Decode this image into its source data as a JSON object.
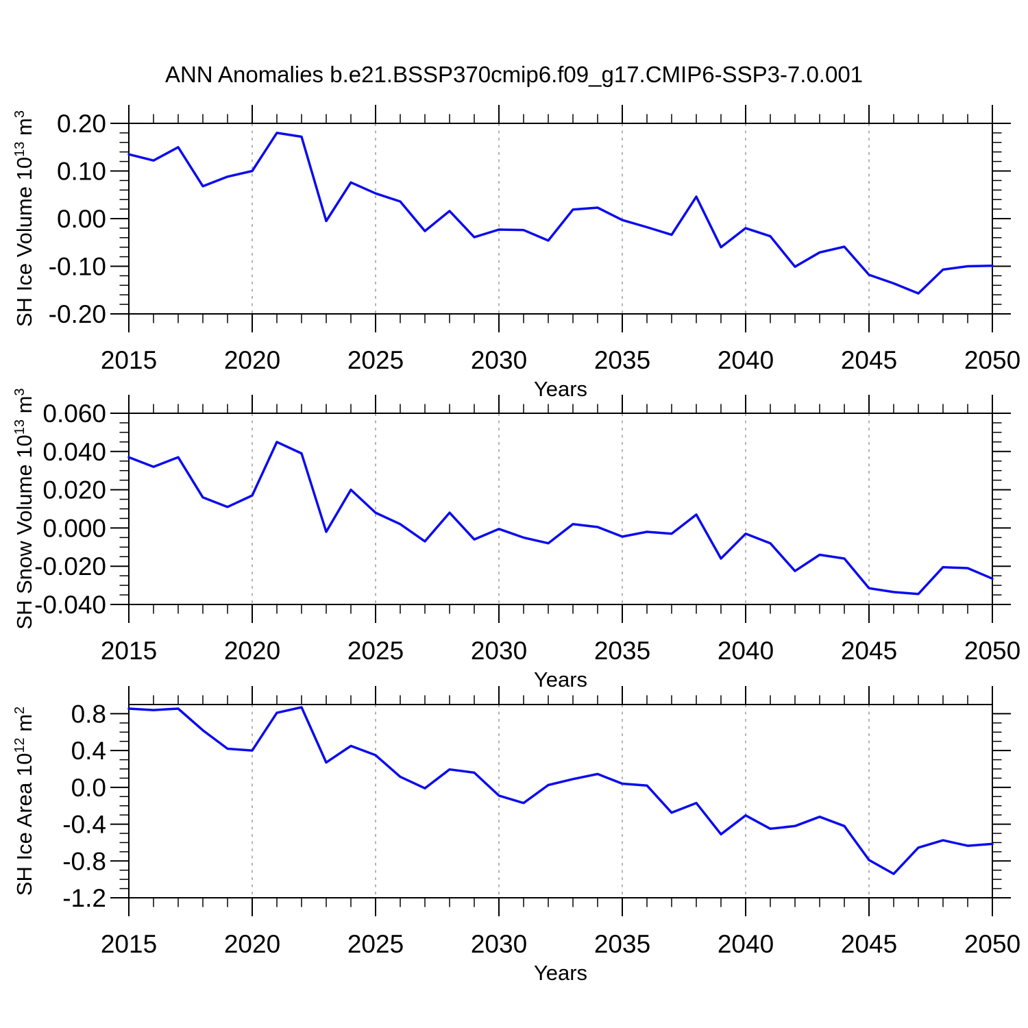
{
  "chart_title": "ANN Anomalies b.e21.BSSP370cmip6.f09_g17.CMIP6-SSP3-7.0.001",
  "colors": {
    "line": "#0b0bf0",
    "grid": "#b4b4b4",
    "axis": "#000000",
    "text": "#000000",
    "background": "#ffffff"
  },
  "x_axis": {
    "label": "Years",
    "range": [
      2015,
      2050
    ],
    "tick_years": [
      2015,
      2020,
      2025,
      2030,
      2035,
      2040,
      2045,
      2050
    ],
    "tick_labels": [
      "2015",
      "2020",
      "2025",
      "2030",
      "2035",
      "2040",
      "2045",
      "2050"
    ],
    "grid_years": [
      2020,
      2025,
      2030,
      2035,
      2040,
      2045
    ],
    "minor_tick_interval": 1,
    "grid_style": "vertical-dashed"
  },
  "chart_data": [
    {
      "type": "line",
      "id": "sh-ice-volume",
      "ylabel": "SH Ice Volume 10^13 m^3",
      "ylabel_parts": [
        {
          "text": "SH Ice Volume 10"
        },
        {
          "text": "13",
          "sup": true
        },
        {
          "text": " m"
        },
        {
          "text": "3",
          "sup": true
        }
      ],
      "xlabel": "Years",
      "frame_range": [
        -0.2,
        0.2
      ],
      "ytick_values": [
        0.2,
        0.1,
        0.0,
        -0.1,
        -0.2
      ],
      "ytick_labels": [
        "0.20",
        "0.10",
        "0.00",
        "-0.10",
        "-0.20"
      ],
      "y_minor_step": 0.02,
      "legend": "none",
      "x": [
        2015,
        2016,
        2017,
        2018,
        2019,
        2020,
        2021,
        2022,
        2023,
        2024,
        2025,
        2026,
        2027,
        2028,
        2029,
        2030,
        2031,
        2032,
        2033,
        2034,
        2035,
        2036,
        2037,
        2038,
        2039,
        2040,
        2041,
        2042,
        2043,
        2044,
        2045,
        2046,
        2047,
        2048,
        2049,
        2050
      ],
      "values": [
        0.135,
        0.122,
        0.15,
        0.068,
        0.088,
        0.1,
        0.18,
        0.172,
        -0.005,
        0.076,
        0.053,
        0.036,
        -0.026,
        0.016,
        -0.039,
        -0.023,
        -0.024,
        -0.046,
        0.019,
        0.023,
        -0.003,
        -0.018,
        -0.034,
        0.046,
        -0.06,
        -0.02,
        -0.037,
        -0.101,
        -0.071,
        -0.059,
        -0.118,
        -0.136,
        -0.157,
        -0.107,
        -0.1,
        -0.099
      ]
    },
    {
      "type": "line",
      "id": "sh-snow-volume",
      "ylabel": "SH Snow Volume 10^13 m^3",
      "ylabel_parts": [
        {
          "text": "SH Snow Volume 10"
        },
        {
          "text": "13",
          "sup": true
        },
        {
          "text": " m"
        },
        {
          "text": "3",
          "sup": true
        }
      ],
      "xlabel": "Years",
      "frame_range": [
        -0.04,
        0.06
      ],
      "ytick_values": [
        0.06,
        0.04,
        0.02,
        0.0,
        -0.02,
        -0.04
      ],
      "ytick_labels": [
        "0.060",
        "0.040",
        "0.020",
        "0.000",
        "-0.020",
        "-0.040"
      ],
      "y_minor_step": 0.005,
      "legend": "none",
      "x": [
        2015,
        2016,
        2017,
        2018,
        2019,
        2020,
        2021,
        2022,
        2023,
        2024,
        2025,
        2026,
        2027,
        2028,
        2029,
        2030,
        2031,
        2032,
        2033,
        2034,
        2035,
        2036,
        2037,
        2038,
        2039,
        2040,
        2041,
        2042,
        2043,
        2044,
        2045,
        2046,
        2047,
        2048,
        2049,
        2050
      ],
      "values": [
        0.037,
        0.032,
        0.037,
        0.016,
        0.011,
        0.017,
        0.045,
        0.039,
        -0.002,
        0.02,
        0.008,
        0.002,
        -0.007,
        0.008,
        -0.006,
        -0.0005,
        -0.005,
        -0.008,
        0.002,
        0.0005,
        -0.0045,
        -0.002,
        -0.003,
        0.007,
        -0.016,
        -0.003,
        -0.008,
        -0.0225,
        -0.014,
        -0.016,
        -0.0315,
        -0.0335,
        -0.0345,
        -0.0205,
        -0.021,
        -0.0265
      ]
    },
    {
      "type": "line",
      "id": "sh-ice-area",
      "ylabel": "SH Ice Area 10^12 m^2",
      "ylabel_parts": [
        {
          "text": "SH Ice Area 10"
        },
        {
          "text": "12",
          "sup": true
        },
        {
          "text": " m"
        },
        {
          "text": "2",
          "sup": true
        }
      ],
      "xlabel": "Years",
      "frame_range": [
        -1.2,
        0.9
      ],
      "ytick_values": [
        0.8,
        0.4,
        0.0,
        -0.4,
        -0.8,
        -1.2
      ],
      "ytick_labels": [
        "0.8",
        "0.4",
        "0.0",
        "-0.4",
        "-0.8",
        "-1.2"
      ],
      "y_minor_step": 0.1,
      "legend": "none",
      "x": [
        2015,
        2016,
        2017,
        2018,
        2019,
        2020,
        2021,
        2022,
        2023,
        2024,
        2025,
        2026,
        2027,
        2028,
        2029,
        2030,
        2031,
        2032,
        2033,
        2034,
        2035,
        2036,
        2037,
        2038,
        2039,
        2040,
        2041,
        2042,
        2043,
        2044,
        2045,
        2046,
        2047,
        2048,
        2049,
        2050
      ],
      "values": [
        0.855,
        0.84,
        0.855,
        0.62,
        0.42,
        0.4,
        0.81,
        0.87,
        0.27,
        0.45,
        0.35,
        0.115,
        -0.01,
        0.195,
        0.16,
        -0.09,
        -0.17,
        0.025,
        0.09,
        0.145,
        0.04,
        0.02,
        -0.275,
        -0.17,
        -0.51,
        -0.305,
        -0.45,
        -0.42,
        -0.32,
        -0.42,
        -0.79,
        -0.94,
        -0.655,
        -0.575,
        -0.635,
        -0.615
      ]
    }
  ]
}
